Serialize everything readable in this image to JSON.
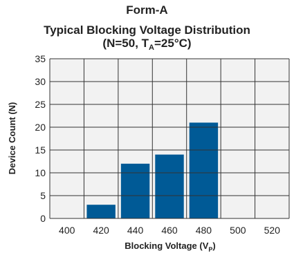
{
  "chart_data": {
    "type": "bar",
    "title": "Form-A",
    "subtitle_line1": "Typical Blocking Voltage Distribution",
    "subtitle_line2": {
      "pre": "(N=50, T",
      "sub": "A",
      "post": "=25°C)"
    },
    "xlabel": {
      "pre": "Blocking Voltage (V",
      "sub": "P",
      "post": ")"
    },
    "ylabel": "Device Count (N)",
    "categories": [
      "400",
      "420",
      "440",
      "460",
      "480",
      "500",
      "520"
    ],
    "values": [
      0,
      3,
      12,
      14,
      21,
      0,
      0
    ],
    "ylim": [
      0,
      35
    ],
    "yticks": [
      0,
      5,
      10,
      15,
      20,
      25,
      30,
      35
    ],
    "grid": true,
    "bar_color": "#005a96",
    "grid_color": "#333333",
    "plot_background": "#f2f2f2"
  }
}
